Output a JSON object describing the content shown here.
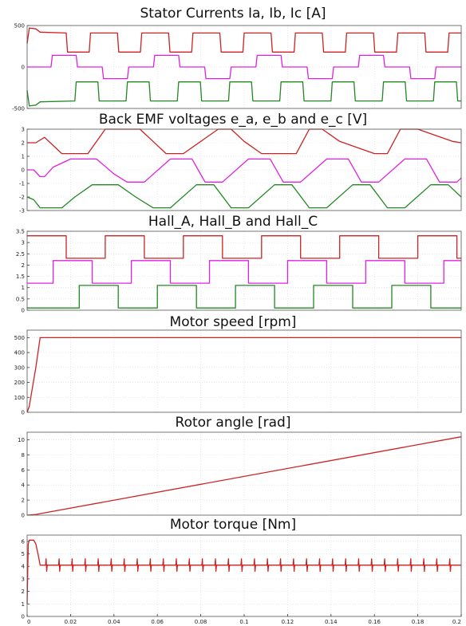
{
  "chart_data": [
    {
      "type": "line",
      "title": "Stator Currents Ia, Ib, Ic [A]",
      "xlim": [
        0,
        0.2
      ],
      "ylim": [
        -500,
        500
      ],
      "yticks": [
        -500,
        0,
        500
      ],
      "ytick_labels": [
        "-500",
        "0",
        "500"
      ],
      "grid": true,
      "series": [
        {
          "color": "#cc2222",
          "x": [
            0,
            0.001,
            0.004,
            0.006,
            0.018,
            0.0186,
            0.0286,
            0.0292,
            0.0416,
            0.0422,
            0.0522,
            0.0528,
            0.0652,
            0.0658,
            0.0758,
            0.0764,
            0.0888,
            0.0894,
            0.0994,
            0.1,
            0.1124,
            0.113,
            0.123,
            0.1236,
            0.136,
            0.1366,
            0.1466,
            0.1472,
            0.1596,
            0.1602,
            0.1702,
            0.1708,
            0.1832,
            0.1838,
            0.1938,
            0.1944,
            0.2
          ],
          "y": [
            280,
            470,
            460,
            420,
            410,
            180,
            180,
            410,
            410,
            180,
            180,
            410,
            410,
            180,
            180,
            410,
            410,
            180,
            180,
            410,
            410,
            180,
            180,
            410,
            410,
            180,
            180,
            410,
            410,
            180,
            180,
            410,
            410,
            180,
            180,
            410,
            410
          ]
        },
        {
          "color": "#e020e0",
          "x": [
            0,
            0.001,
            0.011,
            0.0116,
            0.0226,
            0.0232,
            0.0346,
            0.0352,
            0.0462,
            0.0468,
            0.0582,
            0.0588,
            0.0698,
            0.0704,
            0.0818,
            0.0824,
            0.0934,
            0.094,
            0.1054,
            0.106,
            0.117,
            0.1176,
            0.129,
            0.1296,
            0.1406,
            0.1412,
            0.1526,
            0.1532,
            0.1642,
            0.1648,
            0.1762,
            0.1768,
            0.1878,
            0.1884,
            0.2
          ],
          "y": [
            0,
            0,
            0,
            140,
            140,
            0,
            0,
            -140,
            -140,
            0,
            0,
            140,
            140,
            0,
            0,
            -140,
            -140,
            0,
            0,
            140,
            140,
            0,
            0,
            -140,
            -140,
            0,
            0,
            140,
            140,
            0,
            0,
            -140,
            -140,
            0,
            0
          ]
        },
        {
          "color": "#228822",
          "x": [
            0,
            0.001,
            0.004,
            0.006,
            0.022,
            0.0226,
            0.0326,
            0.0332,
            0.0456,
            0.0462,
            0.0562,
            0.0568,
            0.0692,
            0.0698,
            0.0798,
            0.0804,
            0.0928,
            0.0934,
            0.1034,
            0.104,
            0.1164,
            0.117,
            0.127,
            0.1276,
            0.14,
            0.1406,
            0.1506,
            0.1512,
            0.1636,
            0.1642,
            0.1742,
            0.1748,
            0.1872,
            0.1878,
            0.1978,
            0.1984,
            0.2
          ],
          "y": [
            -280,
            -470,
            -460,
            -420,
            -410,
            -180,
            -180,
            -410,
            -410,
            -180,
            -180,
            -410,
            -410,
            -180,
            -180,
            -410,
            -410,
            -180,
            -180,
            -410,
            -410,
            -180,
            -180,
            -410,
            -410,
            -180,
            -180,
            -410,
            -410,
            -180,
            -180,
            -410,
            -410,
            -180,
            -180,
            -410,
            -410
          ]
        }
      ]
    },
    {
      "type": "line",
      "title": "Back EMF voltages e_a, e_b and e_c [V]",
      "xlim": [
        0,
        0.2
      ],
      "ylim": [
        -3,
        3
      ],
      "yticks": [
        -3,
        -2,
        -1,
        0,
        1,
        2,
        3
      ],
      "ytick_labels": [
        "-3",
        "-2",
        "-1",
        "0",
        "1",
        "2",
        "3"
      ],
      "grid": true,
      "series": [
        {
          "color": "#cc2222",
          "x": [
            0,
            0.004,
            0.008,
            0.012,
            0.016,
            0.028,
            0.036,
            0.052,
            0.058,
            0.064,
            0.072,
            0.088,
            0.094,
            0.1,
            0.108,
            0.124,
            0.13,
            0.136,
            0.144,
            0.16,
            0.166,
            0.172,
            0.18,
            0.196,
            0.2
          ],
          "y": [
            2,
            2,
            2.4,
            1.8,
            1.2,
            1.2,
            3,
            3,
            2.1,
            1.2,
            1.2,
            3,
            3,
            2.1,
            1.2,
            1.2,
            3,
            3,
            2.1,
            1.2,
            1.2,
            3,
            3,
            2.1,
            2
          ]
        },
        {
          "color": "#e020e0",
          "x": [
            0,
            0.003,
            0.006,
            0.008,
            0.012,
            0.02,
            0.032,
            0.04,
            0.046,
            0.054,
            0.066,
            0.076,
            0.082,
            0.09,
            0.102,
            0.112,
            0.118,
            0.126,
            0.138,
            0.148,
            0.154,
            0.162,
            0.174,
            0.184,
            0.19,
            0.198,
            0.2
          ],
          "y": [
            0,
            0,
            -0.5,
            -0.5,
            0.2,
            0.8,
            0.8,
            -0.3,
            -0.9,
            -0.9,
            0.8,
            0.8,
            -0.9,
            -0.9,
            0.8,
            0.8,
            -0.9,
            -0.9,
            0.8,
            0.8,
            -0.9,
            -0.9,
            0.8,
            0.8,
            -0.9,
            -0.9,
            -0.6
          ]
        },
        {
          "color": "#228822",
          "x": [
            0,
            0.003,
            0.006,
            0.016,
            0.022,
            0.03,
            0.042,
            0.05,
            0.058,
            0.066,
            0.078,
            0.086,
            0.094,
            0.102,
            0.114,
            0.122,
            0.13,
            0.138,
            0.15,
            0.158,
            0.166,
            0.174,
            0.186,
            0.194,
            0.2
          ],
          "y": [
            -2,
            -2.2,
            -2.8,
            -2.8,
            -2,
            -1.1,
            -1.1,
            -2,
            -2.8,
            -2.8,
            -1.1,
            -1.1,
            -2.8,
            -2.8,
            -1.1,
            -1.1,
            -2.8,
            -2.8,
            -1.1,
            -1.1,
            -2.8,
            -2.8,
            -1.1,
            -1.1,
            -2
          ]
        }
      ]
    },
    {
      "type": "line",
      "title": "Hall_A, Hall_B and Hall_C",
      "xlim": [
        0,
        0.2
      ],
      "ylim": [
        0,
        3.5
      ],
      "yticks": [
        0,
        0.5,
        1,
        1.5,
        2,
        2.5,
        3,
        3.5
      ],
      "ytick_labels": [
        "0",
        "0.5",
        "1",
        "1.5",
        "2",
        "2.5",
        "3",
        "3.5"
      ],
      "grid": true,
      "series": [
        {
          "color": "#cc2222",
          "x": [
            0,
            0.018,
            0.018,
            0.036,
            0.036,
            0.054,
            0.054,
            0.072,
            0.072,
            0.09,
            0.09,
            0.108,
            0.108,
            0.126,
            0.126,
            0.144,
            0.144,
            0.162,
            0.162,
            0.18,
            0.18,
            0.198,
            0.198,
            0.2
          ],
          "y": [
            3.3,
            3.3,
            2.3,
            2.3,
            3.3,
            3.3,
            2.3,
            2.3,
            3.3,
            3.3,
            2.3,
            2.3,
            3.3,
            3.3,
            2.3,
            2.3,
            3.3,
            3.3,
            2.3,
            2.3,
            3.3,
            3.3,
            2.3,
            2.3
          ]
        },
        {
          "color": "#e020e0",
          "x": [
            0,
            0.012,
            0.012,
            0.03,
            0.03,
            0.048,
            0.048,
            0.066,
            0.066,
            0.084,
            0.084,
            0.102,
            0.102,
            0.12,
            0.12,
            0.138,
            0.138,
            0.156,
            0.156,
            0.174,
            0.174,
            0.192,
            0.192,
            0.2
          ],
          "y": [
            1.2,
            1.2,
            2.2,
            2.2,
            1.2,
            1.2,
            2.2,
            2.2,
            1.2,
            1.2,
            2.2,
            2.2,
            1.2,
            1.2,
            2.2,
            2.2,
            1.2,
            1.2,
            2.2,
            2.2,
            1.2,
            1.2,
            2.2,
            2.2
          ]
        },
        {
          "color": "#228822",
          "x": [
            0,
            0.024,
            0.024,
            0.042,
            0.042,
            0.06,
            0.06,
            0.078,
            0.078,
            0.096,
            0.096,
            0.114,
            0.114,
            0.132,
            0.132,
            0.15,
            0.15,
            0.168,
            0.168,
            0.186,
            0.186,
            0.2
          ],
          "y": [
            0.1,
            0.1,
            1.1,
            1.1,
            0.1,
            0.1,
            1.1,
            1.1,
            0.1,
            0.1,
            1.1,
            1.1,
            0.1,
            0.1,
            1.1,
            1.1,
            0.1,
            0.1,
            1.1,
            1.1,
            0.1,
            0.1
          ]
        }
      ]
    },
    {
      "type": "line",
      "title": "Motor speed [rpm]",
      "xlim": [
        0,
        0.2
      ],
      "ylim": [
        0,
        550
      ],
      "yticks": [
        0,
        100,
        200,
        300,
        400,
        500
      ],
      "ytick_labels": [
        "0",
        "100",
        "200",
        "300",
        "400",
        "500"
      ],
      "grid": true,
      "series": [
        {
          "color": "#cc2222",
          "x": [
            0,
            0.001,
            0.004,
            0.006,
            0.2
          ],
          "y": [
            0,
            40,
            300,
            500,
            500
          ]
        }
      ]
    },
    {
      "type": "line",
      "title": "Rotor angle [rad]",
      "xlim": [
        0,
        0.2
      ],
      "ylim": [
        0,
        11
      ],
      "yticks": [
        0,
        2,
        4,
        6,
        8,
        10
      ],
      "ytick_labels": [
        "0",
        "2",
        "4",
        "6",
        "8",
        "10"
      ],
      "grid": true,
      "series": [
        {
          "color": "#cc2222",
          "x": [
            0,
            0.004,
            0.2
          ],
          "y": [
            0,
            0.1,
            10.4
          ]
        }
      ]
    },
    {
      "type": "line",
      "title": "Motor torque [Nm]",
      "xlim": [
        0,
        0.2
      ],
      "ylim": [
        0,
        6.5
      ],
      "yticks": [
        0,
        1,
        2,
        3,
        4,
        5,
        6
      ],
      "ytick_labels": [
        "0",
        "1",
        "2",
        "3",
        "4",
        "5",
        "6"
      ],
      "xticks": [
        0,
        0.02,
        0.04,
        0.06,
        0.08,
        0.1,
        0.12,
        0.14,
        0.16,
        0.18,
        0.2
      ],
      "xtick_labels": [
        "0",
        "0.02",
        "0.04",
        "0.06",
        "0.08",
        "0.1",
        "0.12",
        "0.14",
        "0.16",
        "0.18",
        "0.2"
      ],
      "grid": true,
      "series": [
        {
          "color": "#cc2222",
          "x": [
            0,
            0.0005,
            0.001,
            0.003,
            0.004,
            0.005,
            0.006,
            0.2
          ],
          "y": [
            1,
            5.8,
            6.1,
            6.1,
            5.8,
            5,
            4.1,
            4.1
          ],
          "ripple_spikes": {
            "start": 0.009,
            "step": 0.006,
            "amplitude": 0.5
          }
        }
      ]
    }
  ]
}
